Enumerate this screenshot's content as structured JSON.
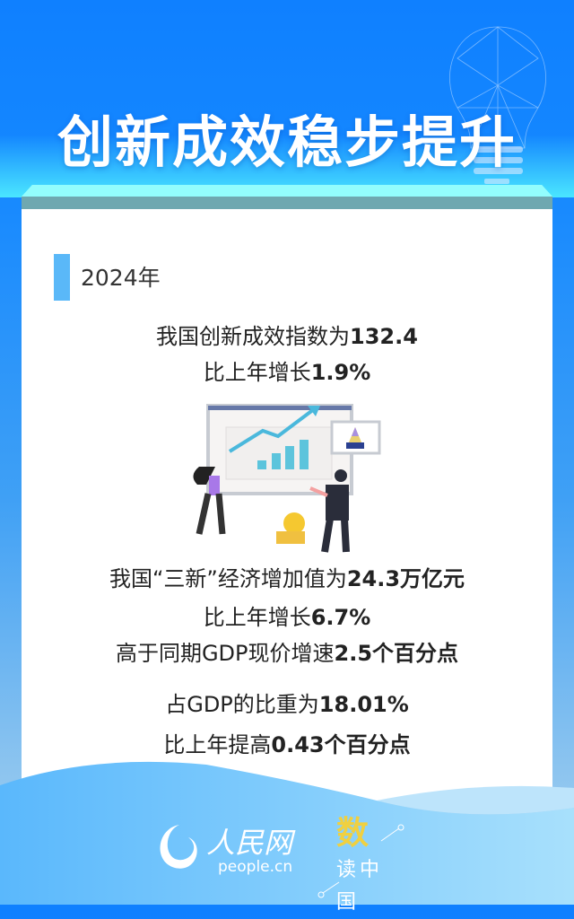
{
  "title": "创新成效稳步提升",
  "year": "2024年",
  "lines": [
    {
      "pre": "我国创新成效指数为",
      "num": "132.4"
    },
    {
      "pre": "比上年增长",
      "num": "1.9%"
    },
    {
      "pre": "我国“三新”经济增加值为",
      "num": "24.3万亿元"
    },
    {
      "pre": "比上年增长",
      "num": "6.7%"
    },
    {
      "pre": "高于同期GDP现价增速",
      "num": "2.5个百分点"
    },
    {
      "pre": "占GDP的比重为",
      "num": "18.01%"
    },
    {
      "pre": "比上年提高",
      "num": "0.43个百分点"
    }
  ],
  "footer": {
    "logo_text": "人民网",
    "site": "people.cn",
    "brand": "数读中国"
  },
  "colors": {
    "top_blue": "#0f80ff",
    "accent_bar": "#5ab8f8",
    "brand_yellow": "#f0d040"
  }
}
